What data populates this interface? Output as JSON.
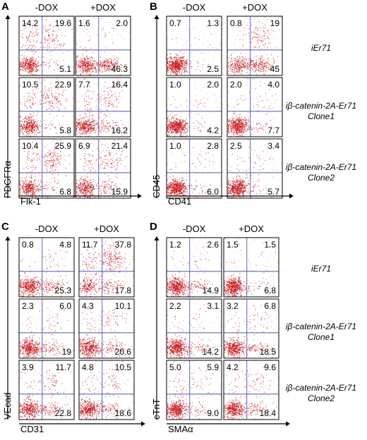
{
  "figure": {
    "panels": [
      {
        "letter": "A",
        "conditions": [
          "-DOX",
          "+DOX"
        ],
        "x_axis": "Flk-1",
        "y_axis": "PDGFRα",
        "rows": [
          [
            {
              "ul": "14.2",
              "ur": "19.6",
              "lr": "5.1"
            },
            {
              "ul": "1.6",
              "ur": "2.0",
              "lr": "46.3"
            }
          ],
          [
            {
              "ul": "10.5",
              "ur": "22.9",
              "lr": "5.8"
            },
            {
              "ul": "7.7",
              "ur": "16.4",
              "lr": "16.2"
            }
          ],
          [
            {
              "ul": "10.4",
              "ur": "25.9",
              "lr": "6.8"
            },
            {
              "ul": "6.9",
              "ur": "21.4",
              "lr": "15.9"
            }
          ]
        ]
      },
      {
        "letter": "B",
        "conditions": [
          "-DOX",
          "+DOX"
        ],
        "x_axis": "CD41",
        "y_axis": "CD45",
        "rows": [
          [
            {
              "ul": "0.7",
              "ur": "1.3",
              "lr": "2.5"
            },
            {
              "ul": "0.8",
              "ur": "19",
              "lr": "45"
            }
          ],
          [
            {
              "ul": "1.0",
              "ur": "2.0",
              "lr": "4.2"
            },
            {
              "ul": "2.0",
              "ur": "4.0",
              "lr": "7.7"
            }
          ],
          [
            {
              "ul": "1.0",
              "ur": "2.8",
              "lr": "6.0"
            },
            {
              "ul": "2.5",
              "ur": "3.4",
              "lr": "5.7"
            }
          ]
        ]
      },
      {
        "letter": "C",
        "conditions": [
          "-DOX",
          "+DOX"
        ],
        "x_axis": "CD31",
        "y_axis": "VEcad",
        "rows": [
          [
            {
              "ul": "0.8",
              "ur": "4.8",
              "lr": "25.3"
            },
            {
              "ul": "11.7",
              "ur": "37.8",
              "lr": "17.8"
            }
          ],
          [
            {
              "ul": "2.3",
              "ur": "6.0",
              "lr": "19"
            },
            {
              "ul": "4.3",
              "ur": "10.1",
              "lr": "20.6"
            }
          ],
          [
            {
              "ul": "3.9",
              "ur": "11.7",
              "lr": "22.8"
            },
            {
              "ul": "4.8",
              "ur": "10.5",
              "lr": "18.6"
            }
          ]
        ]
      },
      {
        "letter": "D",
        "conditions": [
          "-DOX",
          "+DOX"
        ],
        "x_axis": "SMAα",
        "y_axis": "cTnT",
        "rows": [
          [
            {
              "ul": "1.2",
              "ur": "2.6",
              "lr": "14.9"
            },
            {
              "ul": "1.5",
              "ur": "1.5",
              "lr": "6.8"
            }
          ],
          [
            {
              "ul": "2.2",
              "ur": "3.1",
              "lr": "14.2"
            },
            {
              "ul": "3.2",
              "ur": "6.8",
              "lr": "18.5"
            }
          ],
          [
            {
              "ul": "5.0",
              "ur": "5.9",
              "lr": "9.0"
            },
            {
              "ul": "4.2",
              "ur": "9.6",
              "lr": "18.4"
            }
          ]
        ]
      }
    ],
    "row_labels_top": [
      {
        "line1": "iEr71",
        "line2": ""
      },
      {
        "line1": "iβ-catenin-2A-Er71",
        "line2": "Clone1"
      },
      {
        "line1": "iβ-catenin-2A-Er71",
        "line2": "Clone2"
      }
    ],
    "row_labels_bottom": [
      {
        "line1": "iEr71",
        "line2": ""
      },
      {
        "line1": "iβ-catenin-2A-Er71",
        "line2": "Clone1"
      },
      {
        "line1": "iβ-catenin-2A-Er71",
        "line2": "Clone2"
      }
    ],
    "colors": {
      "dots": "#c8151b",
      "gate": "#4a56b5",
      "frame": "#000000"
    }
  }
}
